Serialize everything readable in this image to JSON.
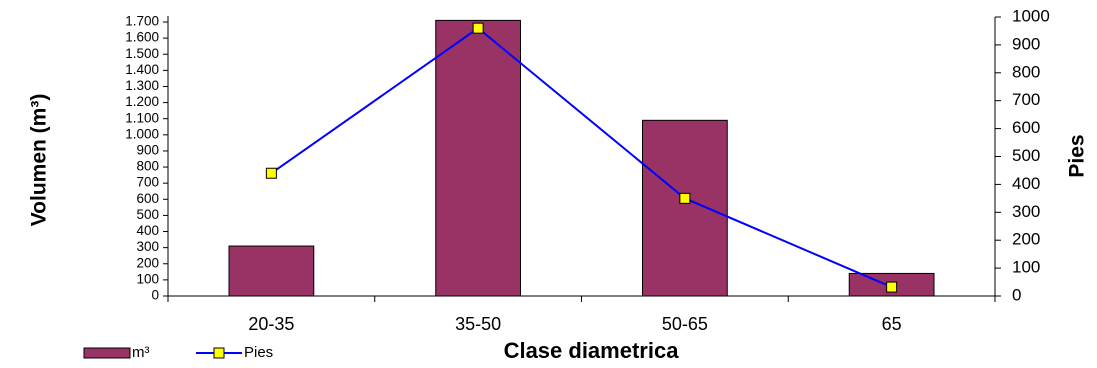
{
  "chart_data": {
    "type": "bar",
    "xlabel": "Clase diametrica",
    "ylabel": "Volumen (m³)",
    "y2label": "Pies",
    "categories": [
      "20-35",
      "35-50",
      "50-65",
      "65"
    ],
    "series": [
      {
        "name": "m³",
        "type": "bar",
        "color": "#993366",
        "values": [
          310,
          1710,
          1090,
          140
        ]
      },
      {
        "name": "Pies",
        "type": "line",
        "axis": "y2",
        "color": "#0000ff",
        "marker_color": "#ffff00",
        "values": [
          440,
          960,
          350,
          32
        ]
      }
    ],
    "ylim": [
      0,
      1700
    ],
    "yticks": [
      0,
      100,
      200,
      300,
      400,
      500,
      600,
      700,
      800,
      900,
      {
        "value": 1000,
        "label": "1.000"
      },
      {
        "value": 1100,
        "label": "1.100"
      },
      {
        "value": 1200,
        "label": "1.200"
      },
      {
        "value": 1300,
        "label": "1.300"
      },
      {
        "value": 1400,
        "label": "1.400"
      },
      {
        "value": 1500,
        "label": "1.500"
      },
      {
        "value": 1600,
        "label": "1.600"
      },
      {
        "value": 1700,
        "label": "1.700"
      }
    ],
    "y2lim": [
      0,
      1000
    ],
    "y2ticks": [
      0,
      100,
      200,
      300,
      400,
      500,
      600,
      700,
      800,
      900,
      1000
    ],
    "legend": "bottom-left"
  }
}
